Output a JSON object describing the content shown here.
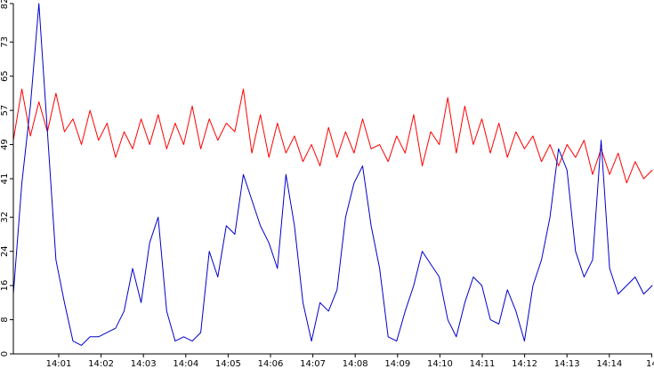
{
  "chart_data": {
    "type": "line",
    "title": "",
    "xlabel": "",
    "ylabel": "",
    "ylim": [
      0,
      82
    ],
    "grid": false,
    "legend": "none",
    "y_ticks": [
      0,
      8,
      16,
      24,
      32,
      41,
      49,
      57,
      65,
      73,
      82
    ],
    "x_ticks": [
      "14:01",
      "14:02",
      "14:03",
      "14:04",
      "14:05",
      "14:06",
      "14:07",
      "14:08",
      "14:09",
      "14:10",
      "14:11",
      "14:12",
      "14:13",
      "14:14",
      "14"
    ],
    "series": [
      {
        "color": "#ff0000",
        "x": [
          0.0,
          0.2,
          0.4,
          0.6,
          0.8,
          1.0,
          1.2,
          1.4,
          1.6,
          1.8,
          2.0,
          2.2,
          2.4,
          2.6,
          2.8,
          3.0,
          3.2,
          3.4,
          3.6,
          3.8,
          4.0,
          4.2,
          4.4,
          4.6,
          4.8,
          5.0,
          5.2,
          5.4,
          5.6,
          5.8,
          6.0,
          6.2,
          6.4,
          6.6,
          6.8,
          7.0,
          7.2,
          7.4,
          7.6,
          7.8,
          8.0,
          8.2,
          8.4,
          8.6,
          8.8,
          9.0,
          9.2,
          9.4,
          9.6,
          9.8,
          10.0,
          10.2,
          10.4,
          10.6,
          10.8,
          11.0,
          11.2,
          11.4,
          11.6,
          11.8,
          12.0,
          12.2,
          12.4,
          12.6,
          12.8,
          13.0,
          13.2,
          13.4,
          13.6,
          13.8,
          14.0,
          14.2,
          14.4,
          14.6,
          14.8,
          15.0
        ],
        "values": [
          50,
          62,
          51,
          59,
          52,
          61,
          52,
          55,
          49,
          57,
          50,
          54,
          46,
          52,
          48,
          55,
          49,
          56,
          48,
          54,
          49,
          58,
          48,
          55,
          50,
          54,
          52,
          62,
          47,
          56,
          46,
          54,
          47,
          51,
          45,
          49,
          44,
          53,
          46,
          52,
          47,
          55,
          48,
          49,
          45,
          51,
          47,
          56,
          44,
          52,
          49,
          60,
          47,
          58,
          49,
          55,
          47,
          54,
          46,
          52,
          48,
          51,
          45,
          49,
          44,
          49,
          46,
          50,
          42,
          48,
          42,
          47,
          40,
          45,
          41,
          43
        ]
      },
      {
        "color": "#0000cc",
        "x": [
          0.0,
          0.2,
          0.4,
          0.6,
          0.8,
          1.0,
          1.2,
          1.4,
          1.6,
          1.8,
          2.0,
          2.2,
          2.4,
          2.6,
          2.8,
          3.0,
          3.2,
          3.4,
          3.6,
          3.8,
          4.0,
          4.2,
          4.4,
          4.6,
          4.8,
          5.0,
          5.2,
          5.4,
          5.6,
          5.8,
          6.0,
          6.2,
          6.4,
          6.6,
          6.8,
          7.0,
          7.2,
          7.4,
          7.6,
          7.8,
          8.0,
          8.2,
          8.4,
          8.6,
          8.8,
          9.0,
          9.2,
          9.4,
          9.6,
          9.8,
          10.0,
          10.2,
          10.4,
          10.6,
          10.8,
          11.0,
          11.2,
          11.4,
          11.6,
          11.8,
          12.0,
          12.2,
          12.4,
          12.6,
          12.8,
          13.0,
          13.2,
          13.4,
          13.6,
          13.8,
          14.0,
          14.2,
          14.4,
          14.6,
          14.8,
          15.0
        ],
        "values": [
          14,
          40,
          58,
          82,
          52,
          22,
          12,
          3,
          2,
          4,
          4,
          5,
          6,
          10,
          20,
          12,
          26,
          32,
          10,
          3,
          4,
          3,
          5,
          24,
          18,
          30,
          28,
          42,
          36,
          30,
          26,
          20,
          42,
          30,
          12,
          3,
          12,
          10,
          15,
          32,
          40,
          44,
          30,
          20,
          4,
          3,
          10,
          16,
          24,
          21,
          18,
          8,
          4,
          12,
          18,
          16,
          8,
          7,
          15,
          10,
          3,
          16,
          22,
          32,
          48,
          43,
          24,
          18,
          22,
          50,
          20,
          14,
          16,
          18,
          14,
          16
        ]
      }
    ]
  }
}
